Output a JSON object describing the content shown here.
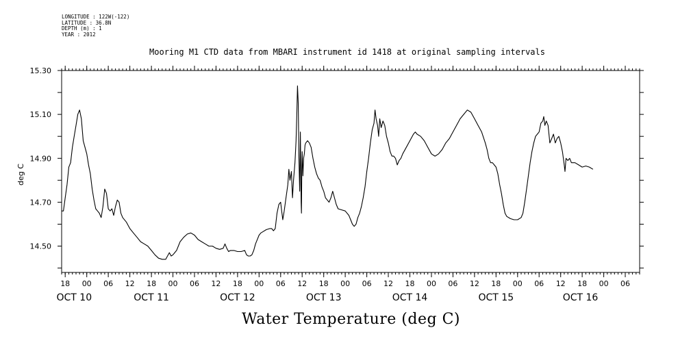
{
  "meta_lines": [
    "LONGITUDE : 122W(-122)",
    "LATITUDE : 36.8N",
    "DEPTH (m) : 1",
    "YEAR : 2012"
  ],
  "title": "Mooring M1 CTD data from MBARI instrument id 1418 at original sampling intervals",
  "x_title": "Water Temperature (deg C)",
  "chart_data": {
    "type": "line",
    "title": "Mooring M1 CTD data from MBARI instrument id 1418 at original sampling intervals",
    "xlabel": "Water Temperature (deg C)",
    "ylabel": "deg C",
    "ylim": [
      14.38,
      15.3
    ],
    "xlim": [
      17,
      178
    ],
    "x_unit": "hours since OCT 10 00:00 (2012)",
    "yticks": [
      14.5,
      14.7,
      14.9,
      15.1,
      15.3
    ],
    "ytick_labels": [
      "14.50",
      "14.70",
      "14.90",
      "15.10",
      "15.30"
    ],
    "xticks": [
      18,
      24,
      30,
      36,
      42,
      48,
      54,
      60,
      66,
      72,
      78,
      84,
      90,
      96,
      102,
      108,
      114,
      120,
      126,
      132,
      138,
      144,
      150,
      156,
      162,
      168,
      174
    ],
    "xtick_labels": [
      "18",
      "00",
      "06",
      "12",
      "18",
      "00",
      "06",
      "12",
      "18",
      "00",
      "06",
      "12",
      "18",
      "00",
      "06",
      "12",
      "18",
      "00",
      "06",
      "12",
      "18",
      "00",
      "06",
      "12",
      "18",
      "00",
      "06"
    ],
    "day_labels": [
      {
        "x": 20.5,
        "label": "OCT 10"
      },
      {
        "x": 42,
        "label": "OCT 11"
      },
      {
        "x": 66,
        "label": "OCT 12"
      },
      {
        "x": 90,
        "label": "OCT 13"
      },
      {
        "x": 114,
        "label": "OCT 14"
      },
      {
        "x": 138,
        "label": "OCT 15"
      },
      {
        "x": 161.5,
        "label": "OCT 16"
      }
    ],
    "grid": false,
    "series": [
      {
        "color": "#000000",
        "points": [
          [
            17.0,
            14.66
          ],
          [
            17.5,
            14.66
          ],
          [
            18.0,
            14.72
          ],
          [
            18.5,
            14.78
          ],
          [
            19.0,
            14.86
          ],
          [
            19.5,
            14.88
          ],
          [
            20.0,
            14.95
          ],
          [
            20.5,
            15.0
          ],
          [
            21.0,
            15.05
          ],
          [
            21.5,
            15.1
          ],
          [
            22.0,
            15.12
          ],
          [
            22.5,
            15.08
          ],
          [
            23.0,
            14.98
          ],
          [
            23.5,
            14.95
          ],
          [
            24.0,
            14.92
          ],
          [
            24.5,
            14.87
          ],
          [
            25.0,
            14.83
          ],
          [
            25.5,
            14.76
          ],
          [
            26.0,
            14.71
          ],
          [
            26.5,
            14.67
          ],
          [
            27.0,
            14.66
          ],
          [
            27.5,
            14.65
          ],
          [
            28.0,
            14.63
          ],
          [
            28.5,
            14.68
          ],
          [
            29.0,
            14.76
          ],
          [
            29.5,
            14.74
          ],
          [
            30.0,
            14.67
          ],
          [
            30.5,
            14.66
          ],
          [
            31.0,
            14.67
          ],
          [
            31.5,
            14.64
          ],
          [
            32.0,
            14.68
          ],
          [
            32.5,
            14.71
          ],
          [
            33.0,
            14.7
          ],
          [
            33.5,
            14.65
          ],
          [
            34.0,
            14.63
          ],
          [
            35.0,
            14.61
          ],
          [
            36.0,
            14.58
          ],
          [
            37.0,
            14.56
          ],
          [
            38.0,
            14.54
          ],
          [
            39.0,
            14.52
          ],
          [
            40.0,
            14.51
          ],
          [
            41.0,
            14.5
          ],
          [
            42.0,
            14.48
          ],
          [
            43.0,
            14.46
          ],
          [
            44.0,
            14.445
          ],
          [
            45.0,
            14.44
          ],
          [
            46.0,
            14.44
          ],
          [
            46.5,
            14.455
          ],
          [
            47.0,
            14.47
          ],
          [
            47.5,
            14.455
          ],
          [
            48.0,
            14.46
          ],
          [
            48.5,
            14.47
          ],
          [
            49.0,
            14.48
          ],
          [
            49.5,
            14.5
          ],
          [
            50.0,
            14.52
          ],
          [
            51.0,
            14.54
          ],
          [
            52.0,
            14.555
          ],
          [
            53.0,
            14.56
          ],
          [
            54.0,
            14.55
          ],
          [
            55.0,
            14.53
          ],
          [
            56.0,
            14.52
          ],
          [
            57.0,
            14.51
          ],
          [
            58.0,
            14.5
          ],
          [
            59.0,
            14.5
          ],
          [
            60.0,
            14.49
          ],
          [
            61.0,
            14.485
          ],
          [
            62.0,
            14.49
          ],
          [
            62.5,
            14.51
          ],
          [
            63.0,
            14.49
          ],
          [
            63.5,
            14.475
          ],
          [
            64.0,
            14.48
          ],
          [
            65.0,
            14.48
          ],
          [
            66.0,
            14.475
          ],
          [
            67.0,
            14.475
          ],
          [
            68.0,
            14.48
          ],
          [
            68.5,
            14.46
          ],
          [
            69.0,
            14.455
          ],
          [
            69.5,
            14.455
          ],
          [
            70.0,
            14.46
          ],
          [
            70.5,
            14.48
          ],
          [
            71.0,
            14.51
          ],
          [
            71.5,
            14.53
          ],
          [
            72.0,
            14.55
          ],
          [
            72.5,
            14.56
          ],
          [
            73.0,
            14.565
          ],
          [
            74.0,
            14.575
          ],
          [
            75.0,
            14.58
          ],
          [
            75.5,
            14.58
          ],
          [
            76.0,
            14.57
          ],
          [
            76.5,
            14.58
          ],
          [
            77.0,
            14.65
          ],
          [
            77.5,
            14.69
          ],
          [
            78.0,
            14.7
          ],
          [
            78.3,
            14.66
          ],
          [
            78.6,
            14.62
          ],
          [
            79.0,
            14.66
          ],
          [
            79.5,
            14.72
          ],
          [
            80.0,
            14.78
          ],
          [
            80.3,
            14.85
          ],
          [
            80.6,
            14.8
          ],
          [
            81.0,
            14.84
          ],
          [
            81.3,
            14.72
          ],
          [
            81.6,
            14.8
          ],
          [
            82.0,
            14.88
          ],
          [
            82.3,
            14.98
          ],
          [
            82.5,
            15.1
          ],
          [
            82.7,
            15.23
          ],
          [
            82.9,
            15.15
          ],
          [
            83.1,
            14.9
          ],
          [
            83.3,
            14.75
          ],
          [
            83.5,
            15.02
          ],
          [
            83.6,
            14.88
          ],
          [
            83.7,
            14.7
          ],
          [
            83.8,
            14.65
          ],
          [
            83.9,
            14.85
          ],
          [
            84.0,
            14.93
          ],
          [
            84.2,
            14.82
          ],
          [
            84.4,
            14.9
          ],
          [
            84.6,
            14.92
          ],
          [
            84.8,
            14.96
          ],
          [
            85.0,
            14.97
          ],
          [
            85.5,
            14.98
          ],
          [
            86.0,
            14.97
          ],
          [
            86.5,
            14.95
          ],
          [
            87.0,
            14.9
          ],
          [
            87.5,
            14.86
          ],
          [
            88.0,
            14.83
          ],
          [
            88.5,
            14.81
          ],
          [
            89.0,
            14.8
          ],
          [
            89.5,
            14.77
          ],
          [
            90.0,
            14.75
          ],
          [
            90.5,
            14.72
          ],
          [
            91.0,
            14.71
          ],
          [
            91.5,
            14.7
          ],
          [
            92.0,
            14.72
          ],
          [
            92.5,
            14.75
          ],
          [
            93.0,
            14.72
          ],
          [
            93.5,
            14.69
          ],
          [
            94.0,
            14.67
          ],
          [
            95.0,
            14.665
          ],
          [
            96.0,
            14.66
          ],
          [
            97.0,
            14.64
          ],
          [
            97.5,
            14.62
          ],
          [
            98.0,
            14.6
          ],
          [
            98.5,
            14.59
          ],
          [
            99.0,
            14.6
          ],
          [
            99.5,
            14.63
          ],
          [
            100.0,
            14.65
          ],
          [
            100.5,
            14.68
          ],
          [
            101.0,
            14.72
          ],
          [
            101.5,
            14.77
          ],
          [
            102.0,
            14.84
          ],
          [
            102.5,
            14.9
          ],
          [
            103.0,
            14.97
          ],
          [
            103.5,
            15.03
          ],
          [
            104.0,
            15.06
          ],
          [
            104.3,
            15.12
          ],
          [
            104.6,
            15.08
          ],
          [
            105.0,
            15.05
          ],
          [
            105.3,
            15.0
          ],
          [
            105.6,
            15.08
          ],
          [
            106.0,
            15.04
          ],
          [
            106.5,
            15.07
          ],
          [
            107.0,
            15.05
          ],
          [
            107.5,
            15.0
          ],
          [
            108.0,
            14.97
          ],
          [
            108.5,
            14.93
          ],
          [
            109.0,
            14.91
          ],
          [
            109.5,
            14.91
          ],
          [
            110.0,
            14.9
          ],
          [
            110.5,
            14.87
          ],
          [
            111.0,
            14.89
          ],
          [
            111.5,
            14.9
          ],
          [
            112.0,
            14.92
          ],
          [
            113.0,
            14.95
          ],
          [
            114.0,
            14.98
          ],
          [
            115.0,
            15.01
          ],
          [
            115.5,
            15.02
          ],
          [
            116.0,
            15.01
          ],
          [
            117.0,
            15.0
          ],
          [
            118.0,
            14.98
          ],
          [
            119.0,
            14.95
          ],
          [
            120.0,
            14.92
          ],
          [
            121.0,
            14.91
          ],
          [
            122.0,
            14.92
          ],
          [
            123.0,
            14.94
          ],
          [
            124.0,
            14.97
          ],
          [
            125.0,
            14.99
          ],
          [
            126.0,
            15.02
          ],
          [
            127.0,
            15.05
          ],
          [
            128.0,
            15.08
          ],
          [
            129.0,
            15.1
          ],
          [
            130.0,
            15.12
          ],
          [
            131.0,
            15.11
          ],
          [
            132.0,
            15.08
          ],
          [
            133.0,
            15.05
          ],
          [
            134.0,
            15.02
          ],
          [
            135.0,
            14.97
          ],
          [
            135.5,
            14.94
          ],
          [
            136.0,
            14.9
          ],
          [
            136.5,
            14.88
          ],
          [
            137.0,
            14.88
          ],
          [
            137.5,
            14.87
          ],
          [
            138.0,
            14.86
          ],
          [
            138.5,
            14.83
          ],
          [
            139.0,
            14.78
          ],
          [
            139.5,
            14.74
          ],
          [
            140.0,
            14.69
          ],
          [
            140.5,
            14.65
          ],
          [
            141.0,
            14.635
          ],
          [
            142.0,
            14.625
          ],
          [
            143.0,
            14.62
          ],
          [
            144.0,
            14.62
          ],
          [
            145.0,
            14.63
          ],
          [
            145.5,
            14.65
          ],
          [
            146.0,
            14.7
          ],
          [
            146.5,
            14.76
          ],
          [
            147.0,
            14.82
          ],
          [
            147.5,
            14.88
          ],
          [
            148.0,
            14.93
          ],
          [
            148.5,
            14.97
          ],
          [
            149.0,
            15.0
          ],
          [
            149.5,
            15.01
          ],
          [
            150.0,
            15.02
          ],
          [
            150.5,
            15.06
          ],
          [
            151.0,
            15.07
          ],
          [
            151.3,
            15.09
          ],
          [
            151.6,
            15.05
          ],
          [
            152.0,
            15.07
          ],
          [
            152.5,
            15.05
          ],
          [
            153.0,
            14.97
          ],
          [
            153.5,
            14.99
          ],
          [
            154.0,
            15.01
          ],
          [
            154.5,
            14.97
          ],
          [
            155.0,
            14.99
          ],
          [
            155.5,
            15.0
          ],
          [
            156.0,
            14.97
          ],
          [
            156.5,
            14.93
          ],
          [
            157.0,
            14.87
          ],
          [
            157.2,
            14.84
          ],
          [
            157.5,
            14.9
          ],
          [
            158.0,
            14.89
          ],
          [
            158.5,
            14.9
          ],
          [
            159.0,
            14.88
          ],
          [
            160.0,
            14.88
          ],
          [
            161.0,
            14.87
          ],
          [
            162.0,
            14.86
          ],
          [
            163.0,
            14.865
          ],
          [
            164.0,
            14.86
          ],
          [
            165.0,
            14.85
          ]
        ]
      }
    ]
  }
}
